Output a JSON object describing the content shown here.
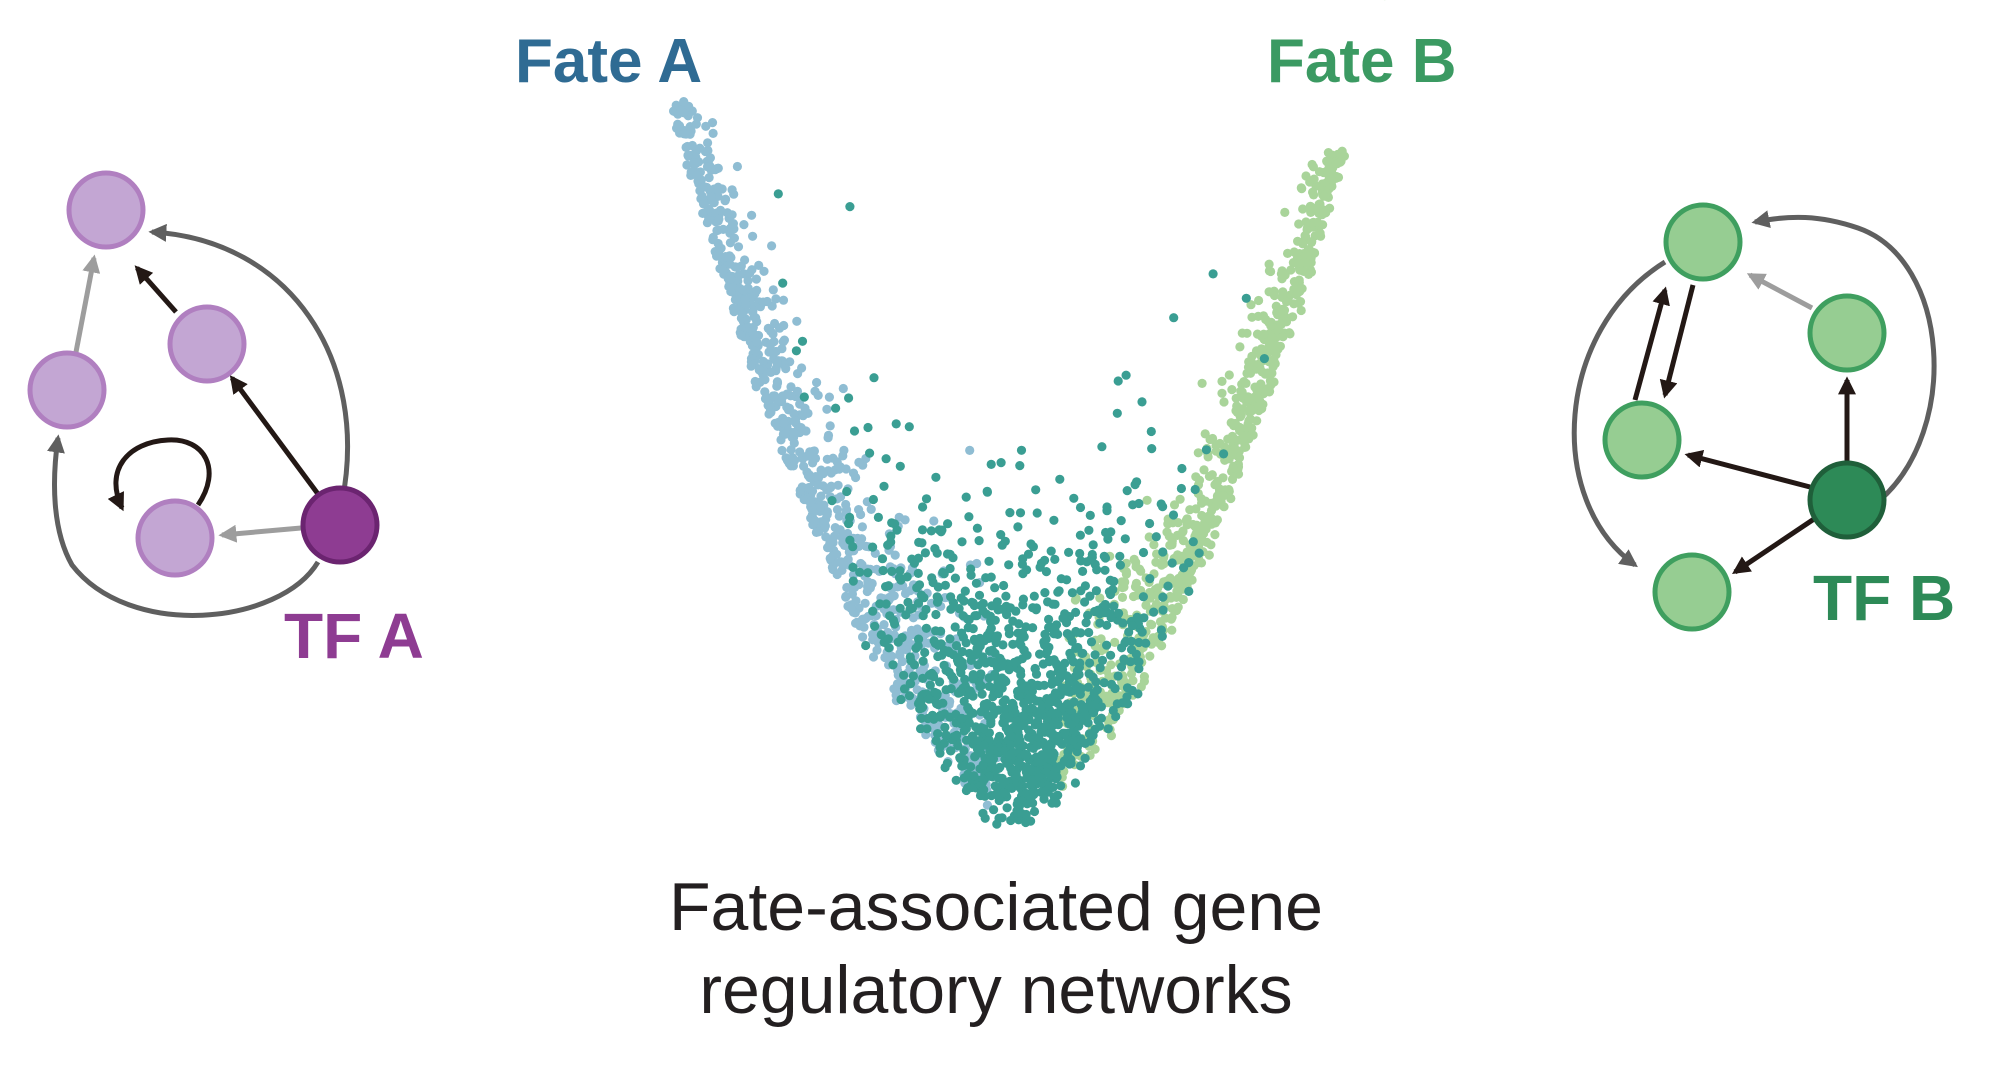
{
  "colors": {
    "fate_a": "#2f6b93",
    "fate_b": "#3b9a62",
    "tf_a_text": "#8e3c92",
    "tf_b_text": "#2d8a57",
    "cells_fate_a": "#8fbdd3",
    "cells_intermediate": "#3a9e93",
    "cells_fate_b": "#a9d49a",
    "node_a_fill": "#c3a6d3",
    "node_a_stroke": "#b07fc0",
    "node_a_tf_fill": "#8e3c92",
    "node_a_tf_stroke": "#6b2470",
    "node_b_fill": "#96cd92",
    "node_b_stroke": "#3f9f5f",
    "node_b_tf_fill": "#2d8a57",
    "node_b_tf_stroke": "#1f5f3a",
    "arrow_dark": "#231815",
    "arrow_gray": "#5f5f5f",
    "arrow_light": "#9d9d9d"
  },
  "labels": {
    "fate_a": "Fate A",
    "fate_b": "Fate B",
    "tf_a": "TF A",
    "tf_b": "TF B",
    "caption_line1": "Fate-associated gene",
    "caption_line2": "regulatory networks"
  },
  "networks": {
    "tf_a": {
      "edges": [
        {
          "from": "TF A",
          "to": "target 1",
          "shade": "dark"
        },
        {
          "from": "target 1",
          "to": "target top",
          "shade": "dark"
        },
        {
          "from": "TF A",
          "to": "target top",
          "shade": "gray"
        },
        {
          "from": "TF A",
          "to": "target loop",
          "shade": "light"
        },
        {
          "from": "target loop",
          "to": "target loop",
          "shade": "dark"
        },
        {
          "from": "TF A",
          "to": "target left",
          "shade": "gray"
        },
        {
          "from": "target left",
          "to": "target top",
          "shade": "light"
        }
      ]
    },
    "tf_b": {
      "edges": [
        {
          "from": "TF B",
          "to": "target right",
          "shade": "dark"
        },
        {
          "from": "target right",
          "to": "target top",
          "shade": "light"
        },
        {
          "from": "TF B",
          "to": "target left",
          "shade": "dark"
        },
        {
          "from": "TF B",
          "to": "target bottom",
          "shade": "dark"
        },
        {
          "from": "target left",
          "to": "target top",
          "shade": "dark"
        },
        {
          "from": "target top",
          "to": "target left",
          "shade": "dark"
        },
        {
          "from": "TF B",
          "to": "target top",
          "shade": "gray"
        },
        {
          "from": "target top",
          "to": "target bottom",
          "shade": "gray"
        }
      ]
    }
  }
}
